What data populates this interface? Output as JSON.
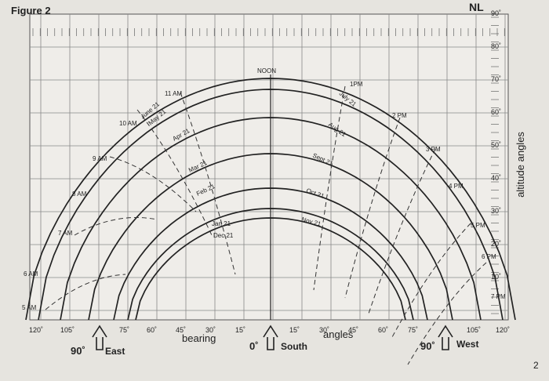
{
  "figure_label": "Figure 2",
  "corner_label": "NL",
  "page_number": "2",
  "altitude": {
    "title": "altitude angles",
    "ticks": [
      "90˚",
      "80˚",
      "70˚",
      "60˚",
      "50˚",
      "40˚",
      "30˚",
      "20˚",
      "10˚"
    ]
  },
  "bearing": {
    "ticks": [
      "120˚",
      "105˚",
      "75˚",
      "60˚",
      "45˚",
      "30˚",
      "15˚",
      "15˚",
      "30˚",
      "45˚",
      "60˚",
      "75˚",
      "105˚",
      "120˚"
    ],
    "word1": "bearing",
    "word2": "angles"
  },
  "directions": [
    {
      "angle": "90˚",
      "name": "East"
    },
    {
      "angle": "0˚",
      "name": "South"
    },
    {
      "angle": "90˚",
      "name": "West"
    }
  ],
  "months": [
    "June 21",
    "May 21",
    "July 21",
    "Apr 21",
    "Aug 21",
    "Mar 21",
    "Sept 21",
    "Feb 21",
    "Oct 21",
    "Jan 21",
    "Nov 21",
    "Dec 21"
  ],
  "hours": [
    "5 AM",
    "6 AM",
    "7 AM",
    "8 AM",
    "9 AM",
    "10 AM",
    "11 AM",
    "NOON",
    "1PM",
    "2 PM",
    "3 PM",
    "4 PM",
    "5 PM",
    "6 PM",
    "7 PM"
  ]
}
